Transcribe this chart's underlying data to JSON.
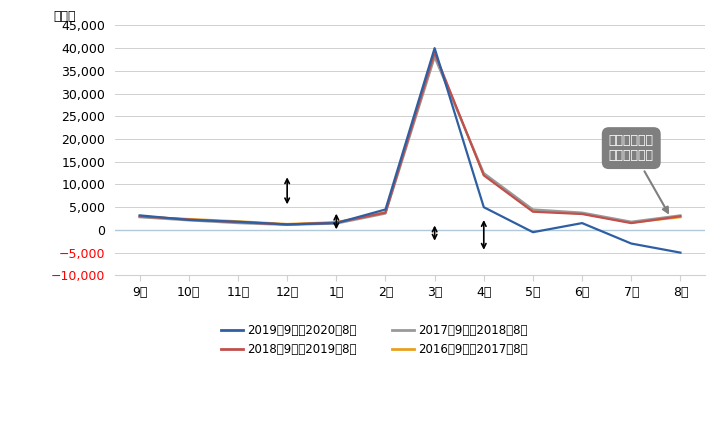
{
  "months": [
    "9月",
    "10月",
    "11月",
    "12月",
    "1月",
    "2月",
    "3月",
    "4月",
    "5月",
    "6月",
    "7月",
    "8月"
  ],
  "series_order": [
    "2019年9月～2020年8月",
    "2018年9月～2019年8月",
    "2017年9月～2018年8月",
    "2016年9月～2017年8月"
  ],
  "series": {
    "2019年9月～2020年8月": {
      "color": "#2E5FA3",
      "values": [
        3200,
        2200,
        1800,
        1200,
        1500,
        4500,
        40000,
        5000,
        -500,
        1500,
        -3000,
        -5000
      ]
    },
    "2018年9月～2019年8月": {
      "color": "#C0504D",
      "values": [
        3000,
        2300,
        1700,
        1200,
        1600,
        3800,
        39000,
        12000,
        4000,
        3500,
        1500,
        3000
      ]
    },
    "2017年9月～2018年8月": {
      "color": "#999999",
      "values": [
        2800,
        2100,
        1500,
        1100,
        1400,
        3600,
        38000,
        12500,
        4500,
        3800,
        1800,
        3200
      ]
    },
    "2016年9月～2017年8月": {
      "color": "#E8A020",
      "values": [
        2900,
        2400,
        1900,
        1300,
        1700,
        3900,
        38500,
        12200,
        4200,
        3600,
        1600,
        2800
      ]
    }
  },
  "ylim": [
    -10000,
    45000
  ],
  "yticks": [
    -10000,
    -5000,
    0,
    5000,
    10000,
    15000,
    20000,
    25000,
    30000,
    35000,
    40000,
    45000
  ],
  "ylabel": "（人）",
  "annotation_text": "近年の同月値\nからの乖離幅",
  "arrows": [
    [
      3,
      12200,
      5000
    ],
    [
      4,
      4200,
      -500
    ],
    [
      6,
      1600,
      -3000
    ],
    [
      7,
      2800,
      -5000
    ]
  ],
  "background_color": "#ffffff",
  "grid_color": "#d0d0d0",
  "zero_line_color": "#b0c8d8",
  "legend_left": [
    "2019年9月～2020年8月",
    "2017年9月～2018年8月"
  ],
  "legend_right": [
    "2018年9月～2019年8月",
    "2016年9月～2017年8月"
  ]
}
